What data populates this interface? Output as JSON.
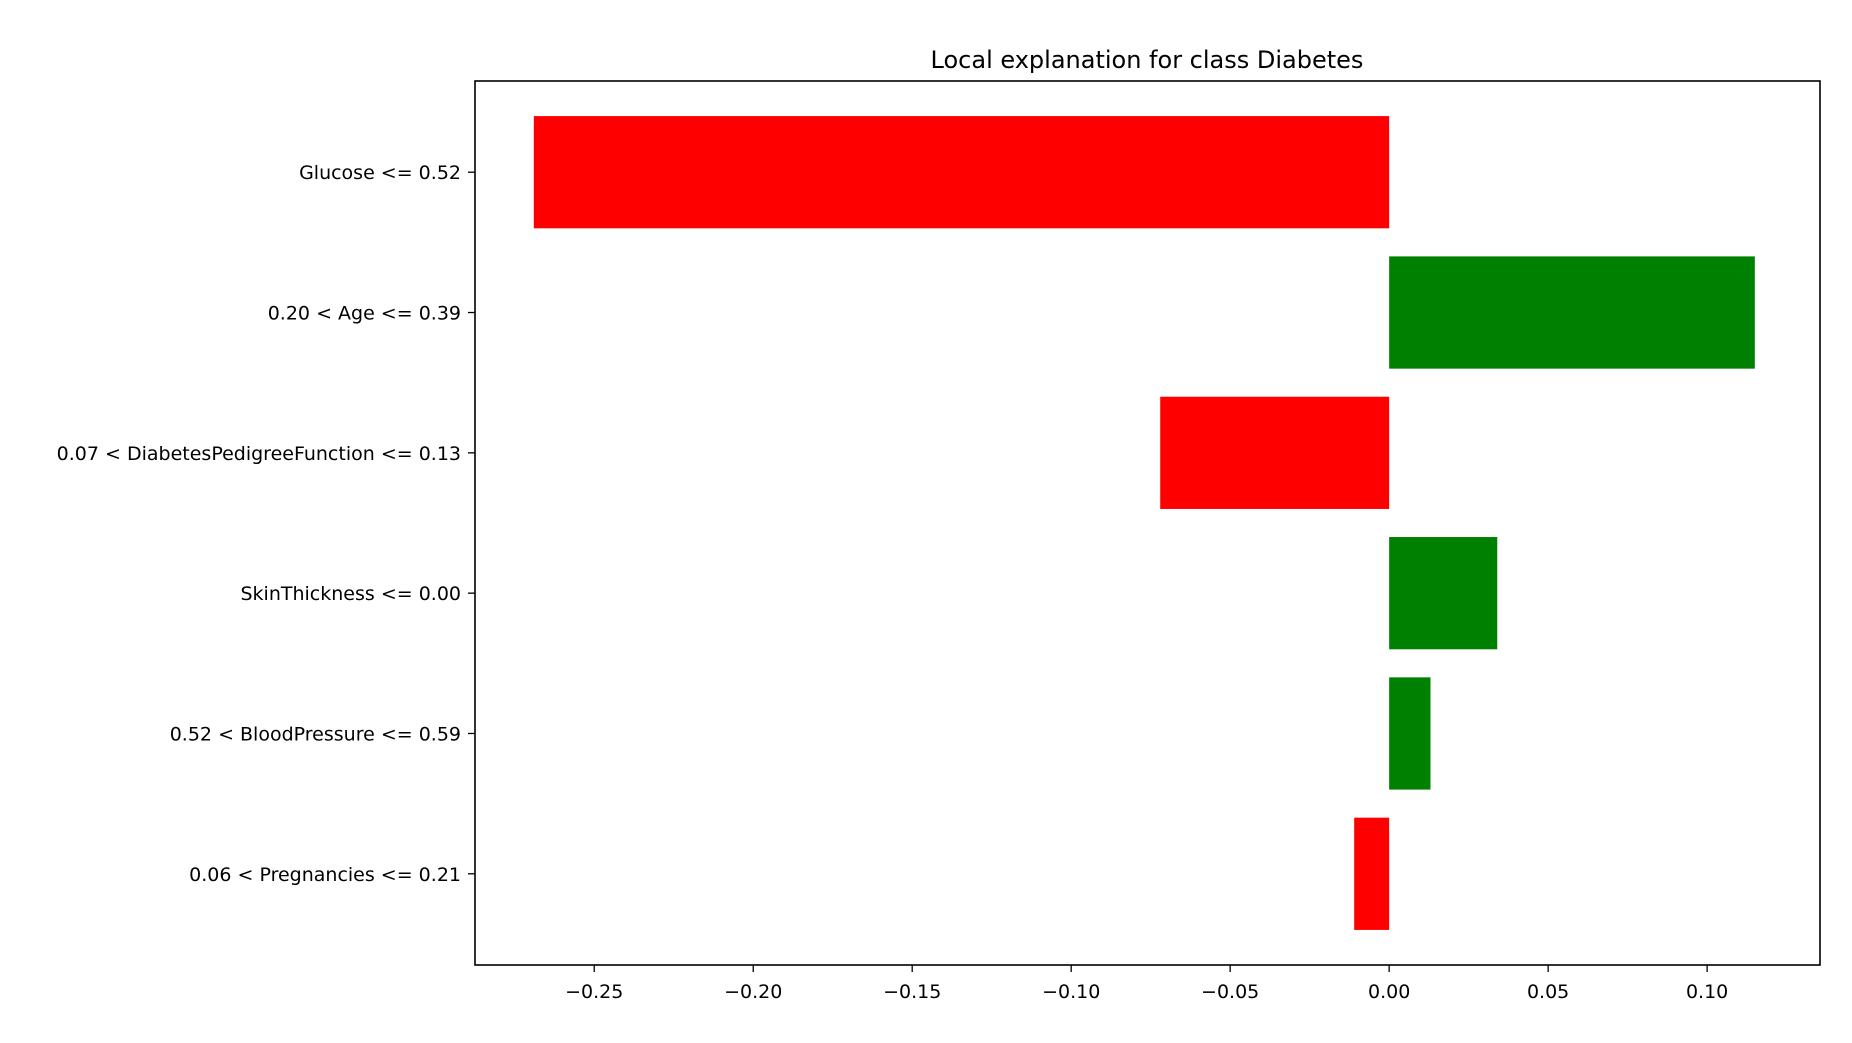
{
  "chart_data": {
    "type": "bar",
    "orientation": "horizontal",
    "title": "Local explanation for class Diabetes",
    "xlabel": "",
    "ylabel": "",
    "xlim": [
      -0.2875,
      0.1355
    ],
    "grid": false,
    "categories": [
      "Glucose <= 0.52",
      "0.20 < Age <= 0.39",
      "0.07 < DiabetesPedigreeFunction <= 0.13",
      "SkinThickness <= 0.00",
      "0.52 < BloodPressure <= 0.59",
      "0.06 < Pregnancies <= 0.21"
    ],
    "values": [
      -0.269,
      0.115,
      -0.072,
      0.034,
      0.013,
      -0.011
    ],
    "x_ticks": [
      -0.25,
      -0.2,
      -0.15,
      -0.1,
      -0.05,
      0.0,
      0.05,
      0.1
    ],
    "x_tick_labels": [
      "−0.25",
      "−0.20",
      "−0.15",
      "−0.10",
      "−0.05",
      "0.00",
      "0.05",
      "0.10"
    ],
    "colors": {
      "positive": "#008000",
      "negative": "#ff0000"
    }
  }
}
